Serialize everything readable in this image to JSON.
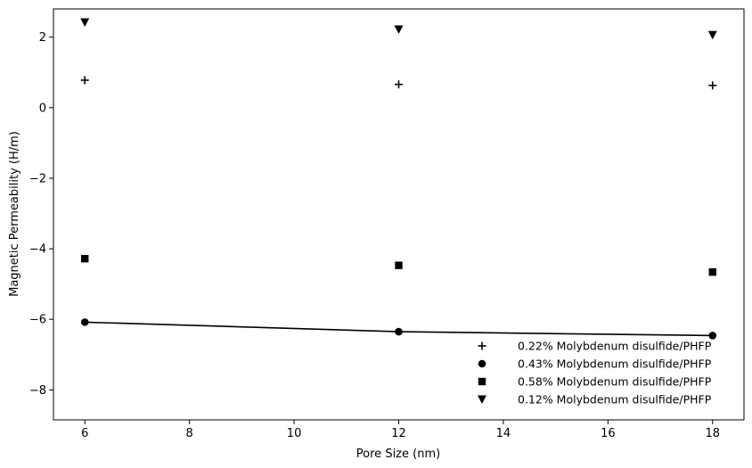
{
  "chart_data": {
    "type": "scatter",
    "title": "",
    "xlabel": "Pore Size (nm)",
    "ylabel": "Magnetic Permeability (H/m)",
    "xlim": [
      5.4,
      18.6
    ],
    "ylim": [
      -8.85,
      2.8
    ],
    "xticks": [
      6,
      8,
      10,
      12,
      14,
      16,
      18
    ],
    "yticks": [
      -8,
      -6,
      -4,
      -2,
      0,
      2
    ],
    "legend_position": "bottom-right",
    "grid": false,
    "x": [
      6,
      12,
      18
    ],
    "series": [
      {
        "name": "0.22% Molybdenum disulfide/PHFP",
        "marker": "plus",
        "values": [
          0.78,
          0.66,
          0.63
        ]
      },
      {
        "name": "0.43% Molybdenum disulfide/PHFP",
        "marker": "circle",
        "values": [
          -6.08,
          -6.35,
          -6.46
        ],
        "line": true
      },
      {
        "name": "0.58% Molybdenum disulfide/PHFP",
        "marker": "square",
        "values": [
          -4.28,
          -4.47,
          -4.66
        ]
      },
      {
        "name": "0.12% Molybdenum disulfide/PHFP",
        "marker": "triangle-down",
        "values": [
          2.42,
          2.22,
          2.06
        ]
      }
    ],
    "color": "#000000"
  }
}
